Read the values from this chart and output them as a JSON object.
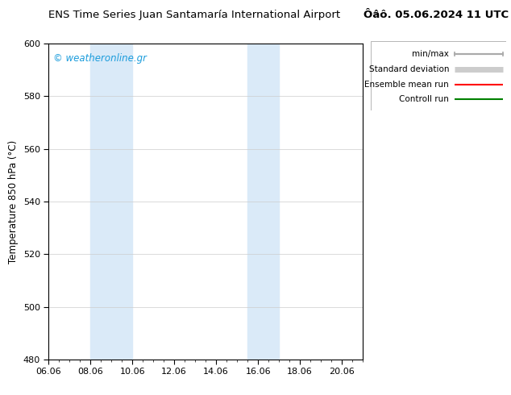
{
  "title_left": "ENS Time Series Juan Santamaría International Airport",
  "title_right": "Ôâô. 05.06.2024 11 UTC",
  "ylabel": "Temperature 850 hPa (°C)",
  "ylim": [
    480,
    600
  ],
  "yticks": [
    480,
    500,
    520,
    540,
    560,
    580,
    600
  ],
  "xtick_labels": [
    "06.06",
    "08.06",
    "10.06",
    "12.06",
    "14.06",
    "16.06",
    "18.06",
    "20.06"
  ],
  "xtick_positions": [
    6.0,
    8.0,
    10.0,
    12.0,
    14.0,
    16.0,
    18.0,
    20.0
  ],
  "xlim": [
    6.0,
    21.0
  ],
  "bg_color": "#ffffff",
  "plot_bg_color": "#ffffff",
  "watermark": "© weatheronline.gr",
  "watermark_color": "#1a9cdc",
  "shaded_bands": [
    {
      "x_start": 8.0,
      "x_end": 10.0,
      "color": "#daeaf8"
    },
    {
      "x_start": 15.5,
      "x_end": 17.0,
      "color": "#daeaf8"
    }
  ],
  "legend_entries": [
    {
      "label": "min/max",
      "color": "#aaaaaa",
      "lw": 1.5,
      "has_markers": true
    },
    {
      "label": "Standard deviation",
      "color": "#cccccc",
      "lw": 5
    },
    {
      "label": "Ensemble mean run",
      "color": "#ff0000",
      "lw": 1.5
    },
    {
      "label": "Controll run",
      "color": "#008000",
      "lw": 1.5
    }
  ],
  "border_color": "#000000",
  "grid_color": "#cccccc",
  "font_size_title": 9.5,
  "font_size_labels": 8.5,
  "font_size_ticks": 8,
  "font_size_watermark": 8.5,
  "font_size_legend": 7.5
}
